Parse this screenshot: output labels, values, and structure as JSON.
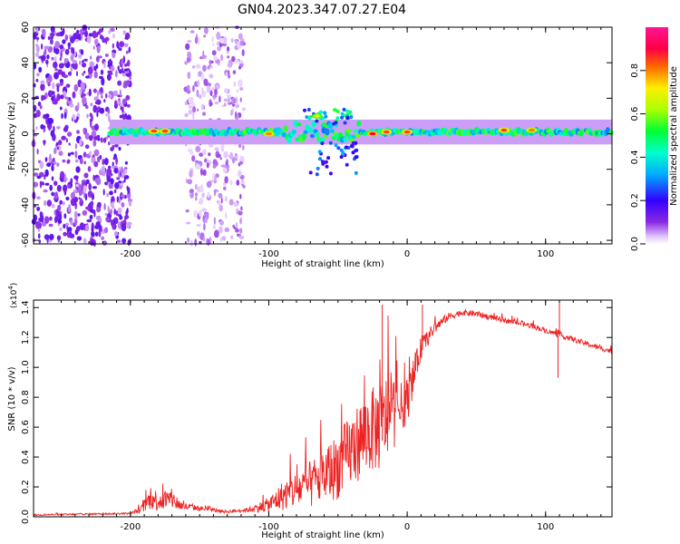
{
  "title": "GN04.2023.347.07.27.E04",
  "chart_data": [
    {
      "type": "heatmap",
      "title": "GN04.2023.347.07.27.E04",
      "xlabel": "Height of straight line (km)",
      "ylabel": "Frequency (Hz)",
      "xlim": [
        -270,
        148
      ],
      "ylim": [
        -62,
        60
      ],
      "xticks": [
        -200,
        -100,
        0,
        100
      ],
      "yticks": [
        -60,
        -40,
        -20,
        0,
        20,
        40,
        60
      ],
      "tick_labels_x": [
        "-200",
        "-100",
        "0",
        "100"
      ],
      "tick_labels_y": [
        "-60",
        "-40",
        "-20",
        "0",
        "20",
        "40",
        "60"
      ],
      "colorbar": {
        "label": "Normalized spectral amplitude",
        "range": [
          0,
          1
        ],
        "ticks": [
          "0.0",
          "0.2",
          "0.4",
          "0.6",
          "0.8"
        ],
        "colormap": "rainbow (purple-blue-cyan-green-yellow-red-magenta)"
      },
      "features": {
        "noise_band_x_ranges": [
          [
            -270,
            -200
          ],
          [
            -160,
            -118
          ]
        ],
        "main_band_center_hz": 1,
        "main_band_x_range": [
          -215,
          148
        ],
        "strong_peaks": [
          {
            "x": -183,
            "y": 1.5,
            "amp": 0.85
          },
          {
            "x": -175,
            "y": 1.5,
            "amp": 0.85
          },
          {
            "x": -100,
            "y": 0,
            "amp": 0.8
          },
          {
            "x": -65,
            "y": 10,
            "amp": 0.7
          },
          {
            "x": -25,
            "y": 0,
            "amp": 0.9
          },
          {
            "x": -15,
            "y": 1,
            "amp": 0.85
          },
          {
            "x": 0,
            "y": 1,
            "amp": 0.85
          },
          {
            "x": 70,
            "y": 2,
            "amp": 0.85
          },
          {
            "x": 90,
            "y": 2,
            "amp": 0.8
          }
        ]
      },
      "grid": false
    },
    {
      "type": "line",
      "xlabel": "Height of straight line (km)",
      "ylabel": "SNR (10 * v/v)",
      "y_multiplier_label": "(x10",
      "y_multiplier_exp": "4",
      "y_multiplier_close": ")",
      "xlim": [
        -270,
        148
      ],
      "ylim": [
        0,
        1.45
      ],
      "xticks": [
        -200,
        -100,
        0,
        100
      ],
      "yticks": [
        0,
        0.2,
        0.4,
        0.6,
        0.8,
        1.0,
        1.2,
        1.4
      ],
      "tick_labels_x": [
        "-200",
        "-100",
        "0",
        "100"
      ],
      "tick_labels_y": [
        "0.0",
        "0.2",
        "0.4",
        "0.6",
        "0.8",
        "1.0",
        "1.2",
        "1.4"
      ],
      "color": "#ee2222",
      "envelope": {
        "x": [
          -270,
          -240,
          -200,
          -192,
          -186,
          -180,
          -170,
          -163,
          -150,
          -130,
          -115,
          -100,
          -90,
          -80,
          -70,
          -60,
          -50,
          -40,
          -30,
          -20,
          -15,
          -10,
          -5,
          0,
          10,
          20,
          30,
          40,
          50,
          60,
          70,
          80,
          90,
          100,
          110,
          120,
          130,
          140,
          148
        ],
        "base": [
          0.01,
          0.015,
          0.02,
          0.04,
          0.09,
          0.08,
          0.09,
          0.06,
          0.05,
          0.03,
          0.04,
          0.06,
          0.1,
          0.13,
          0.15,
          0.2,
          0.25,
          0.35,
          0.45,
          0.48,
          0.55,
          0.6,
          0.65,
          0.72,
          1.1,
          1.25,
          1.33,
          1.36,
          1.35,
          1.33,
          1.31,
          1.29,
          1.27,
          1.24,
          1.21,
          1.18,
          1.15,
          1.12,
          1.1
        ],
        "spread": [
          0.01,
          0.01,
          0.012,
          0.05,
          0.14,
          0.15,
          0.14,
          0.06,
          0.03,
          0.02,
          0.03,
          0.1,
          0.2,
          0.25,
          0.32,
          0.38,
          0.45,
          0.5,
          0.55,
          0.6,
          0.58,
          0.5,
          0.35,
          0.3,
          0.15,
          0.08,
          0.05,
          0.04,
          0.04,
          0.035,
          0.035,
          0.035,
          0.035,
          0.035,
          0.035,
          0.035,
          0.035,
          0.035,
          0.035
        ]
      },
      "annotated_spikes": [
        {
          "x": -18,
          "y": 1.42
        },
        {
          "x": 11,
          "y": 1.42
        },
        {
          "x": 110,
          "y": 1.45
        },
        {
          "x": 109,
          "y": 0.93
        }
      ],
      "grid": false
    }
  ]
}
